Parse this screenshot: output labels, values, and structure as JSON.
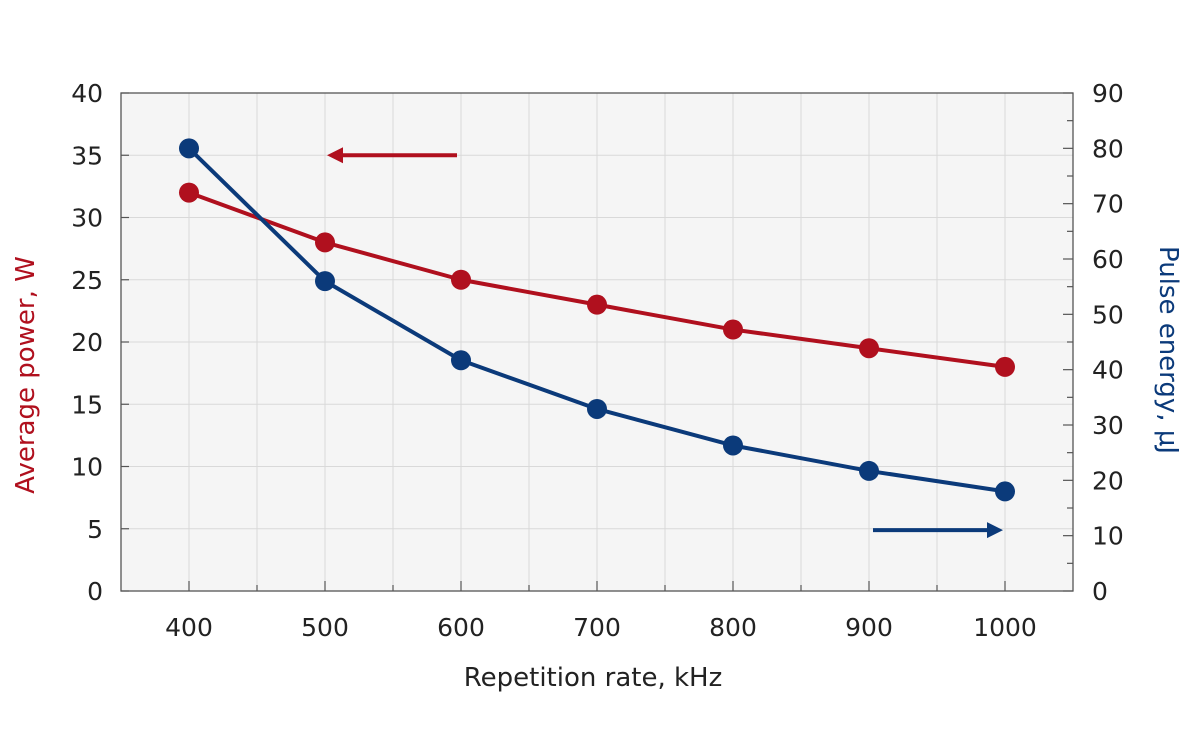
{
  "chart_data": {
    "type": "line",
    "xlabel": "Repetition rate, kHz",
    "ylabel_left": "Average power, W",
    "ylabel_right": "Pulse energy, μJ",
    "x": [
      400,
      500,
      600,
      700,
      800,
      900,
      1000
    ],
    "xlim": [
      350,
      1050
    ],
    "ylim_left": [
      0,
      40
    ],
    "ylim_right": [
      0,
      90
    ],
    "xticks": [
      "400",
      "500",
      "600",
      "700",
      "800",
      "900",
      "1000"
    ],
    "yticks_left": [
      "0",
      "5",
      "10",
      "15",
      "20",
      "25",
      "30",
      "35",
      "40"
    ],
    "yticks_right": [
      "0",
      "10",
      "20",
      "30",
      "40",
      "50",
      "60",
      "70",
      "80",
      "90"
    ],
    "grid": true,
    "series": [
      {
        "axis": "left",
        "color": "#B0101E",
        "values": [
          32,
          28,
          25,
          23,
          21,
          19.5,
          18
        ]
      },
      {
        "axis": "right",
        "color": "#0B3A7A",
        "values": [
          80,
          56,
          41.7,
          32.9,
          26.3,
          21.7,
          18
        ]
      }
    ],
    "annotations": [
      {
        "type": "arrow",
        "direction": "left",
        "series": 0,
        "from": [
          600,
          35
        ],
        "to": [
          500,
          35
        ]
      },
      {
        "type": "arrow",
        "direction": "right",
        "series": 1,
        "from": [
          900,
          11
        ],
        "to": [
          1000,
          11
        ]
      }
    ]
  },
  "colors": {
    "plot_background": "#F5F5F5",
    "grid": "#D9D9D9",
    "axis": "#555555"
  }
}
